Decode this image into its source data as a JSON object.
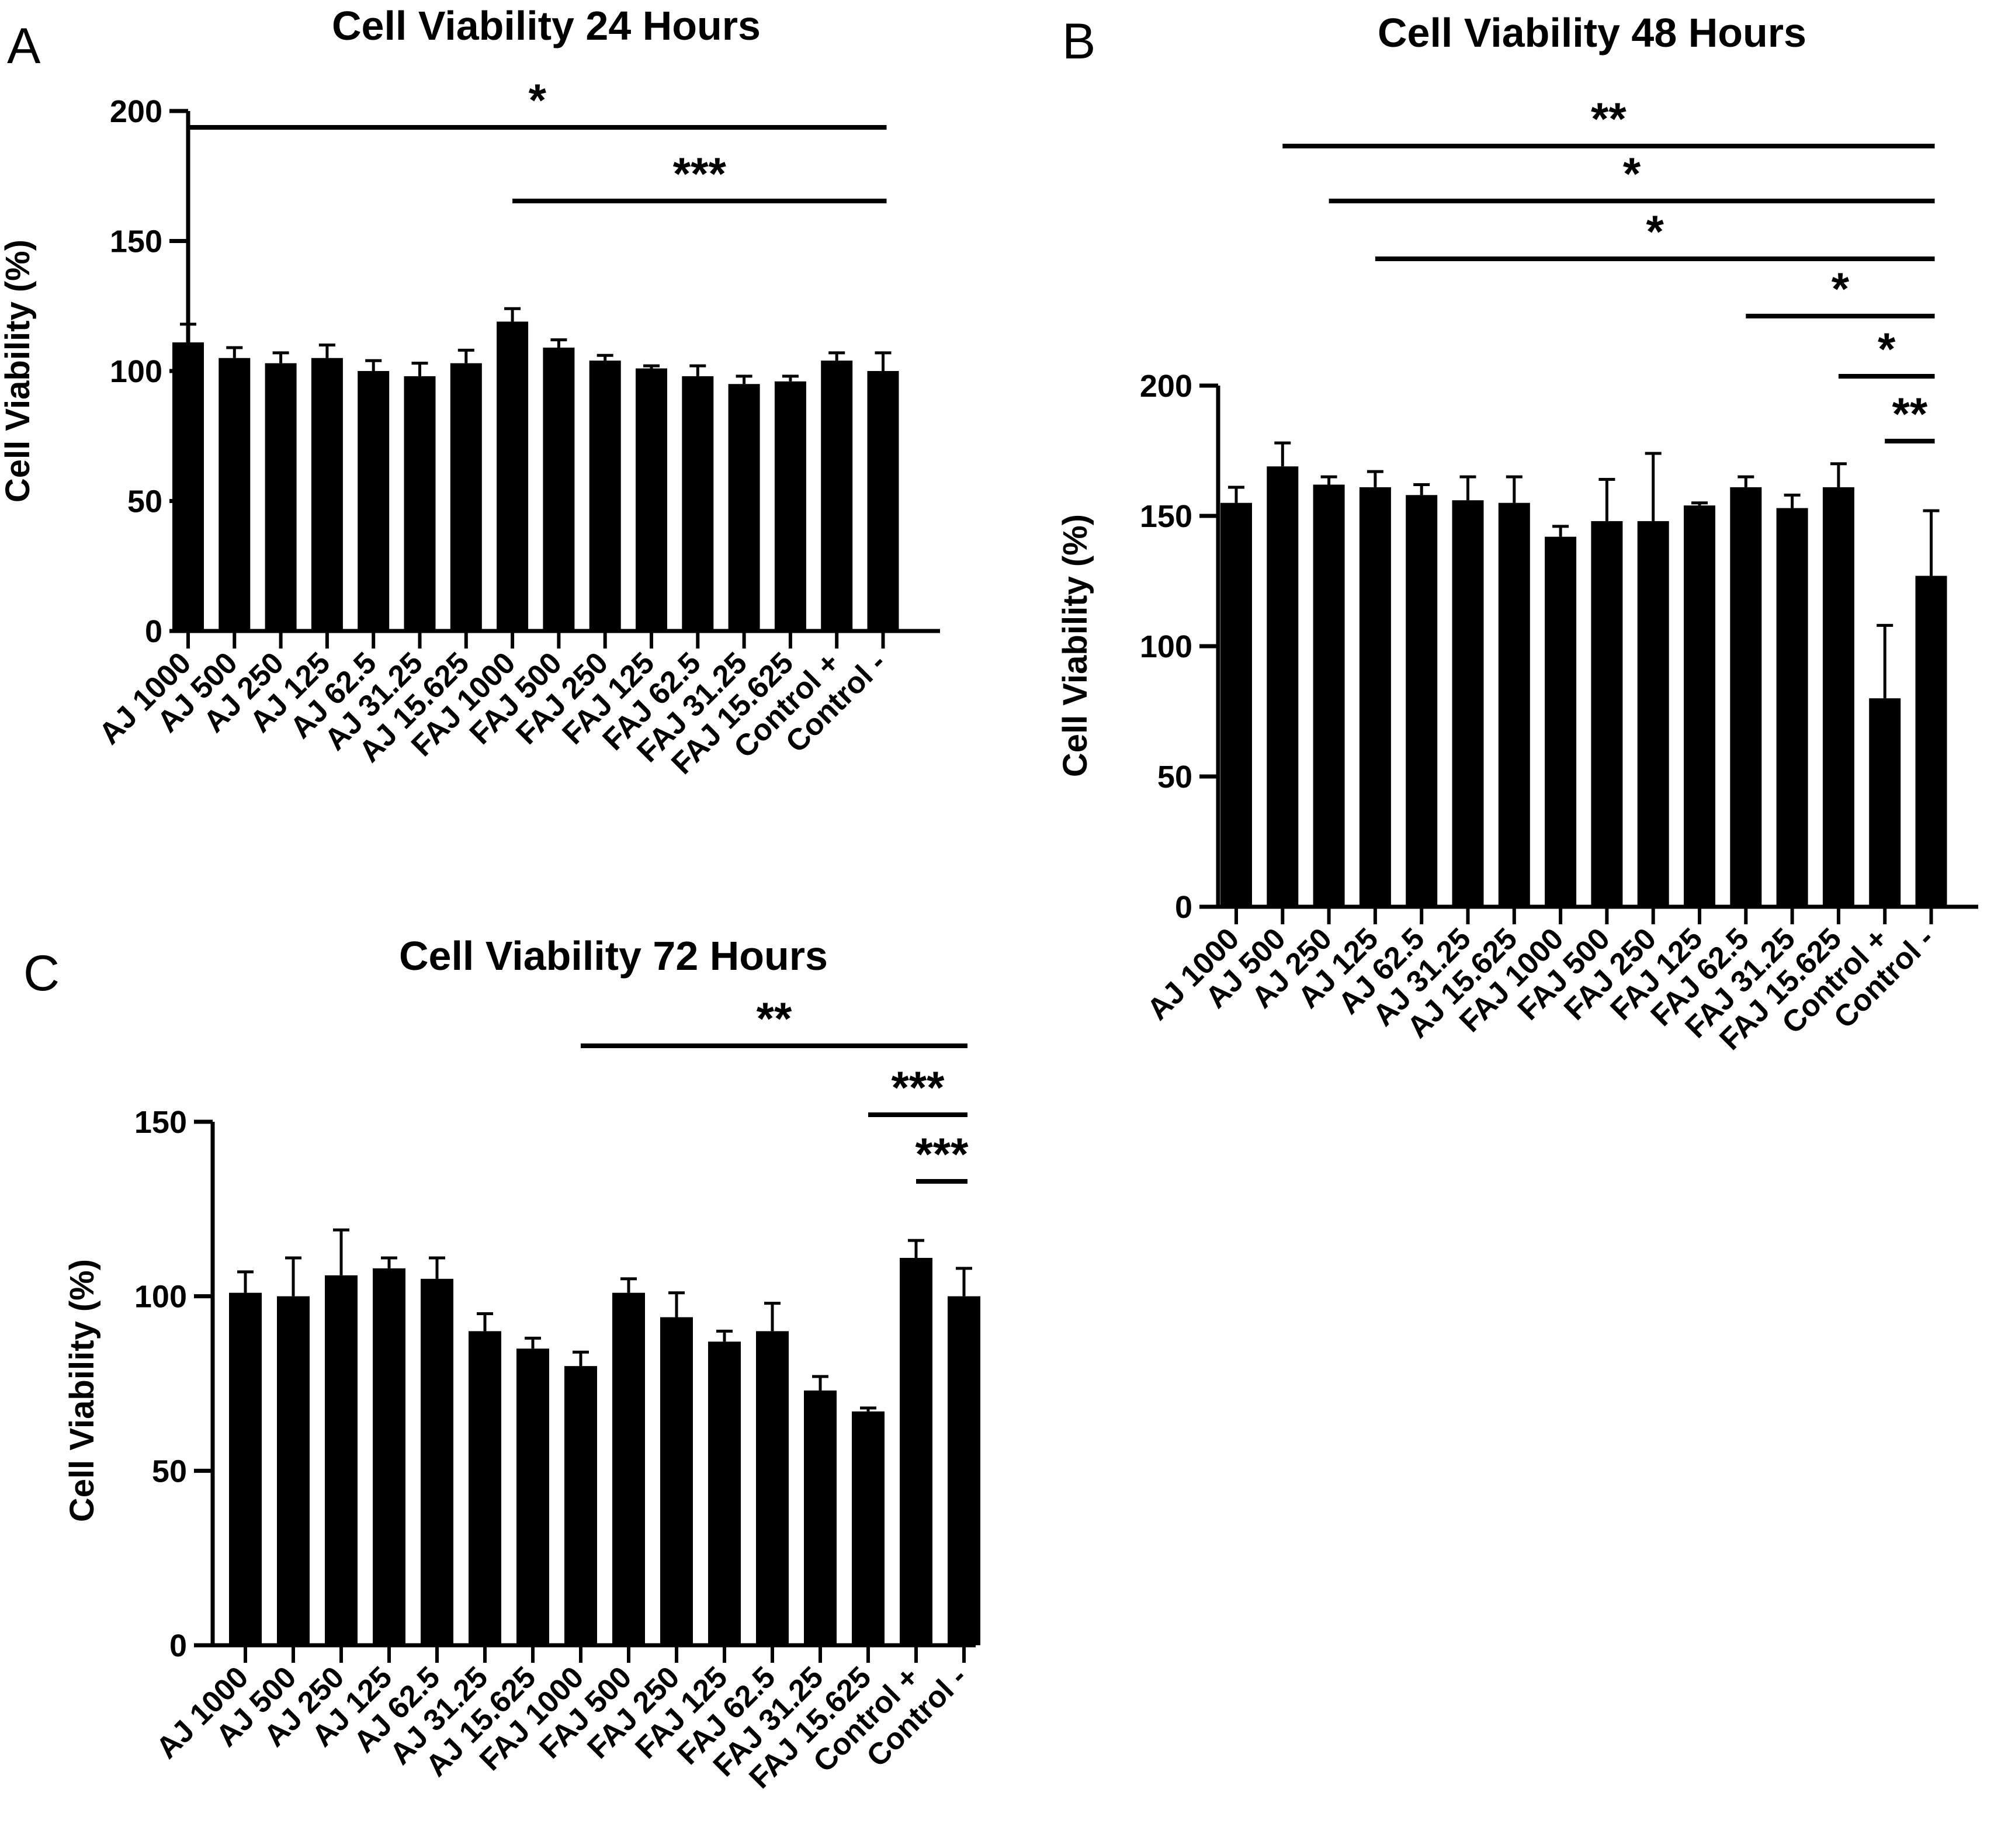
{
  "chart_data": [
    {
      "type": "bar",
      "panel": "A",
      "title": "Cell Viability 24 Hours",
      "xlabel": "",
      "ylabel": "Cell Viability (%)",
      "ylim": [
        0,
        200
      ],
      "yticks": [
        "0",
        "50",
        "100",
        "150",
        "200"
      ],
      "categories": [
        "AJ 1000",
        "AJ 500",
        "AJ 250",
        "AJ 125",
        "AJ 62.5",
        "AJ 31.25",
        "AJ 15.625",
        "FAJ 1000",
        "FAJ 500",
        "FAJ 250",
        "FAJ 125",
        "FAJ 62.5",
        "FAJ 31.25",
        "FAJ 15.625",
        "Control +",
        "Control -"
      ],
      "values": [
        111,
        105,
        103,
        105,
        100,
        98,
        103,
        119,
        109,
        104,
        101,
        98,
        95,
        96,
        104,
        100
      ],
      "errors": [
        7,
        4,
        4,
        5,
        4,
        5,
        5,
        5,
        3,
        2,
        1,
        4,
        3,
        2,
        3,
        7
      ],
      "significance": [
        {
          "from": 0,
          "to": 15,
          "label": "*"
        },
        {
          "from": 7,
          "to": 15,
          "label": "***"
        }
      ]
    },
    {
      "type": "bar",
      "panel": "B",
      "title": "Cell Viability 48 Hours",
      "xlabel": "",
      "ylabel": "Cell Viability (%)",
      "ylim": [
        0,
        200
      ],
      "yticks": [
        "0",
        "50",
        "100",
        "150",
        "200"
      ],
      "categories": [
        "AJ 1000",
        "AJ 500",
        "AJ 250",
        "AJ 125",
        "AJ 62.5",
        "AJ 31.25",
        "AJ 15.625",
        "FAJ 1000",
        "FAJ 500",
        "FAJ 250",
        "FAJ 125",
        "FAJ 62.5",
        "FAJ 31.25",
        "FAJ 15.625",
        "Control +",
        "Control -"
      ],
      "values": [
        155,
        169,
        162,
        161,
        158,
        156,
        155,
        142,
        148,
        148,
        154,
        161,
        153,
        161,
        80,
        127
      ],
      "errors": [
        6,
        9,
        3,
        6,
        4,
        9,
        10,
        4,
        16,
        26,
        1,
        4,
        5,
        9,
        28,
        25
      ],
      "significance": [
        {
          "from": 1,
          "to": 15,
          "label": "**"
        },
        {
          "from": 2,
          "to": 15,
          "label": "*"
        },
        {
          "from": 3,
          "to": 15,
          "label": "*"
        },
        {
          "from": 11,
          "to": 15,
          "label": "*"
        },
        {
          "from": 13,
          "to": 15,
          "label": "*"
        },
        {
          "from": 14,
          "to": 15,
          "label": "**"
        }
      ]
    },
    {
      "type": "bar",
      "panel": "C",
      "title": "Cell Viability 72 Hours",
      "xlabel": "",
      "ylabel": "Cell Viability (%)",
      "ylim": [
        0,
        150
      ],
      "yticks": [
        "0",
        "50",
        "100",
        "150"
      ],
      "categories": [
        "AJ 1000",
        "AJ 500",
        "AJ 250",
        "AJ 125",
        "AJ 62.5",
        "AJ 31.25",
        "AJ 15.625",
        "FAJ 1000",
        "FAJ 500",
        "FAJ 250",
        "FAJ 125",
        "FAJ 62.5",
        "FAJ 31.25",
        "FAJ 15.625",
        "Control +",
        "Control -"
      ],
      "values": [
        101,
        100,
        106,
        108,
        105,
        90,
        85,
        80,
        101,
        94,
        87,
        90,
        73,
        67,
        111,
        100
      ],
      "errors": [
        6,
        11,
        13,
        3,
        6,
        5,
        3,
        4,
        4,
        7,
        3,
        8,
        4,
        1,
        5,
        8
      ],
      "significance": [
        {
          "from": 7,
          "to": 15,
          "label": "**"
        },
        {
          "from": 13,
          "to": 15,
          "label": "***"
        },
        {
          "from": 14,
          "to": 15,
          "label": "***"
        }
      ]
    }
  ]
}
